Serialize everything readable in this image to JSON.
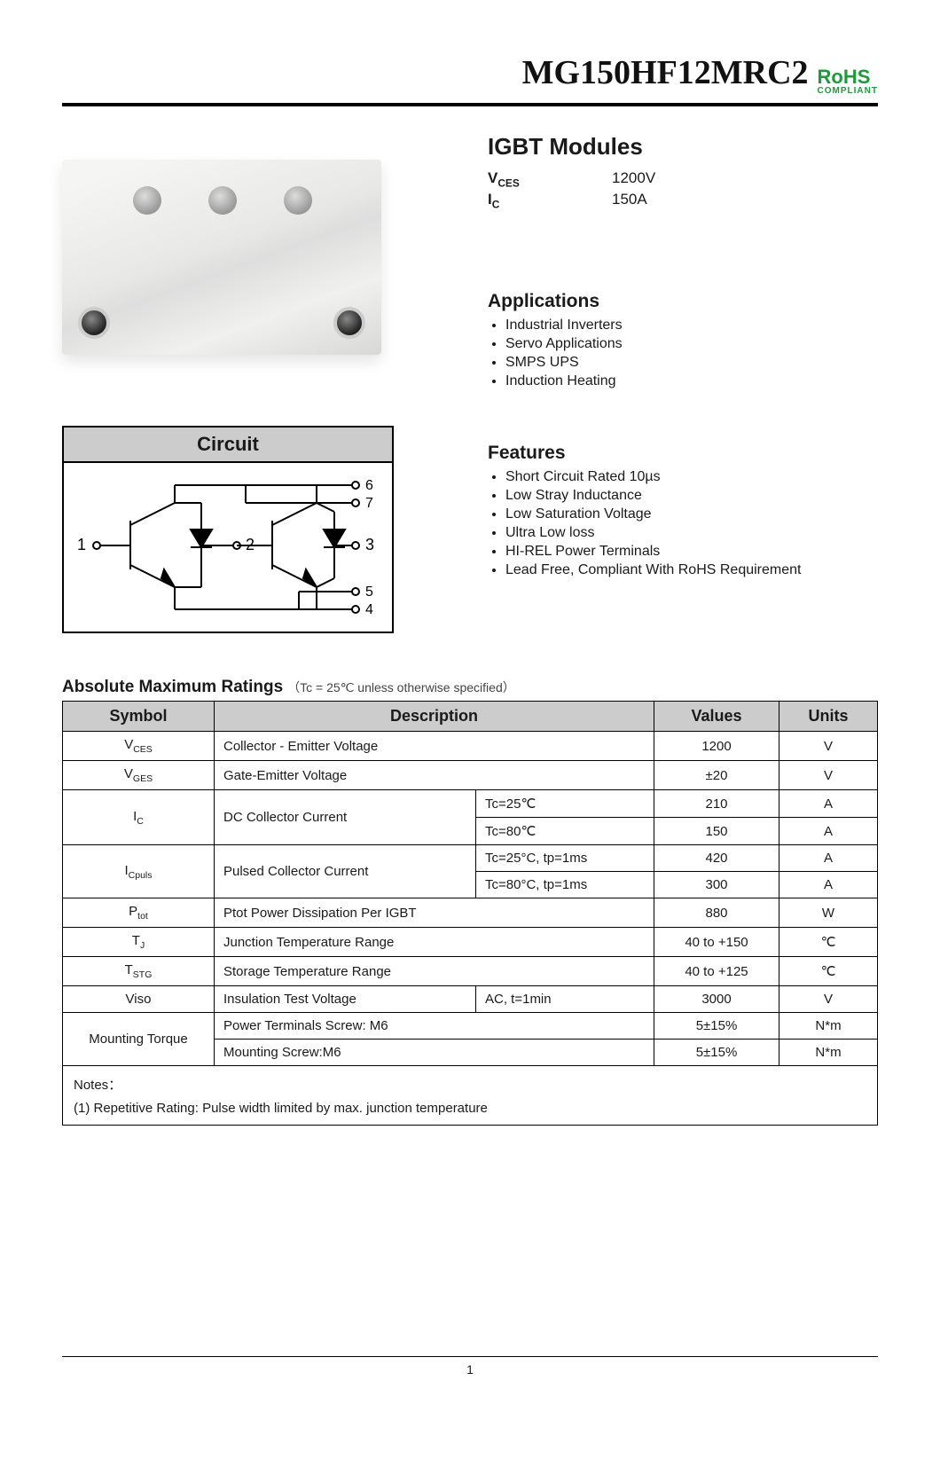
{
  "header": {
    "part_number": "MG150HF12MRC2",
    "rohs_line1": "RoHS",
    "rohs_line2": "COMPLIANT"
  },
  "module": {
    "title": "IGBT Modules",
    "specs": [
      {
        "label": "V",
        "sub": "CES",
        "value": "1200V"
      },
      {
        "label": "I",
        "sub": "C",
        "value": "150A"
      }
    ],
    "applications": {
      "heading": "Applications",
      "items": [
        "Industrial Inverters",
        "Servo Applications",
        "SMPS UPS",
        "Induction Heating"
      ]
    },
    "features": {
      "heading": "Features",
      "items": [
        "Short Circuit Rated 10µs",
        "Low Stray Inductance",
        "Low Saturation Voltage",
        "Ultra Low loss",
        "HI-REL Power Terminals",
        "Lead Free, Compliant With RoHS Requirement"
      ]
    }
  },
  "circuit": {
    "title": "Circuit",
    "terminals": {
      "t1": "1",
      "t2": "2",
      "t3": "3",
      "t4": "4",
      "t5": "5",
      "t6": "6",
      "t7": "7"
    }
  },
  "ratings": {
    "heading": "Absolute Maximum Ratings",
    "condition": "（Tc = 25℃ unless otherwise specified）",
    "columns": [
      "Symbol",
      "Description",
      "Values",
      "Units"
    ],
    "rows": [
      {
        "sym": "V",
        "sub": "CES",
        "desc": "Collector - Emitter Voltage",
        "cond": "",
        "value": "1200",
        "unit": "V",
        "rowspan": 1
      },
      {
        "sym": "V",
        "sub": "GES",
        "desc": "Gate-Emitter Voltage",
        "cond": "",
        "value": "±20",
        "unit": "V",
        "rowspan": 1
      },
      {
        "sym": "I",
        "sub": "C",
        "desc": "DC Collector Current",
        "cond": "Tc=25℃",
        "value": "210",
        "unit": "A",
        "rowspan": 2
      },
      {
        "cond": "Tc=80℃",
        "value": "150",
        "unit": "A"
      },
      {
        "sym": "I",
        "sub": "Cpuls",
        "desc": "Pulsed Collector Current",
        "cond": "Tc=25°C, tp=1ms",
        "value": "420",
        "unit": "A",
        "rowspan": 2
      },
      {
        "cond": "Tc=80°C, tp=1ms",
        "value": "300",
        "unit": "A"
      },
      {
        "sym": "P",
        "sub": "tot",
        "desc": "Ptot Power Dissipation Per IGBT",
        "cond": "",
        "value": "880",
        "unit": "W",
        "rowspan": 1
      },
      {
        "sym": "T",
        "sub": "J",
        "desc": "Junction Temperature Range",
        "cond": "",
        "value": "40 to +150",
        "unit": "℃",
        "rowspan": 1
      },
      {
        "sym": "T",
        "sub": "STG",
        "desc": "Storage Temperature Range",
        "cond": "",
        "value": "40 to +125",
        "unit": "℃",
        "rowspan": 1
      },
      {
        "sym": "Viso",
        "sub": "",
        "desc": "Insulation Test Voltage",
        "cond": "AC, t=1min",
        "value": "3000",
        "unit": "V",
        "rowspan": 1
      },
      {
        "sym": "Mounting Torque",
        "sub": "",
        "desc": "Power Terminals Screw: M6",
        "cond": "",
        "value": "5±15%",
        "unit": "N*m",
        "rowspan": 2
      },
      {
        "desc": "Mounting Screw:M6",
        "cond": "",
        "value": "5±15%",
        "unit": "N*m"
      }
    ],
    "notes_label": "Notes：",
    "notes_text": "(1) Repetitive Rating: Pulse width limited by max. junction temperature"
  },
  "page_number": "1",
  "colors": {
    "header_rule": "#000000",
    "table_header_bg": "#cccccc",
    "rohs_green": "#1c9b3a"
  }
}
